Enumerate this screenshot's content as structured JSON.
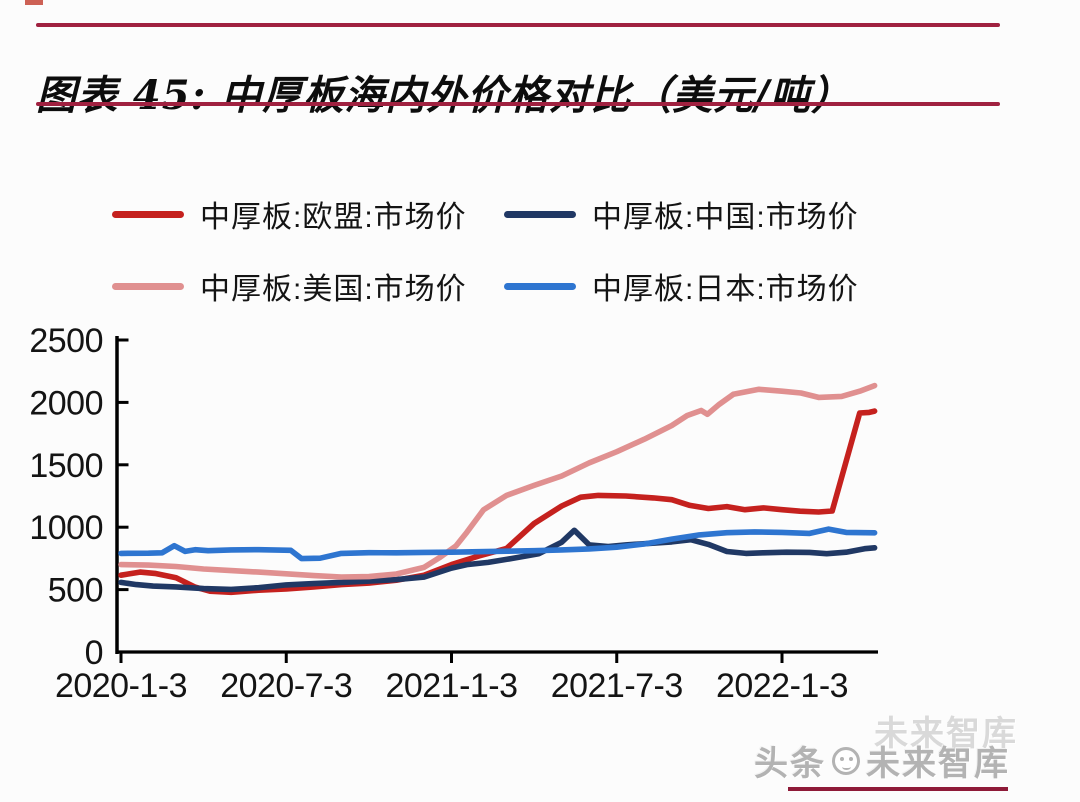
{
  "header": {
    "title": "图表 45:  中厚板海内外价格对比（美元/吨）"
  },
  "legend": {
    "items": [
      {
        "key": "eu",
        "label": "中厚板:欧盟:市场价",
        "color": "#c5211e"
      },
      {
        "key": "china",
        "label": "中厚板:中国:市场价",
        "color": "#203864"
      },
      {
        "key": "us",
        "label": "中厚板:美国:市场价",
        "color": "#e09090"
      },
      {
        "key": "japan",
        "label": "中厚板:日本:市场价",
        "color": "#2e75d0"
      }
    ]
  },
  "watermark": {
    "prefix": "头条",
    "name": "未来智库",
    "ghost": "未来智库"
  },
  "chart_data": {
    "type": "line",
    "title": "中厚板海内外价格对比（美元/吨）",
    "unit": "美元/吨",
    "ylim": [
      0,
      2500
    ],
    "y_ticks": [
      0,
      500,
      1000,
      1500,
      2000,
      2500
    ],
    "x_ticks": [
      {
        "label": "2020-1-3",
        "date": "2020-01-03"
      },
      {
        "label": "2020-7-3",
        "date": "2020-07-03"
      },
      {
        "label": "2021-1-3",
        "date": "2021-01-03"
      },
      {
        "label": "2021-7-3",
        "date": "2021-07-03"
      },
      {
        "label": "2022-1-3",
        "date": "2022-01-03"
      }
    ],
    "grid": false,
    "legend_position": "top",
    "series": [
      {
        "key": "eu",
        "name": "中厚板:欧盟:市场价",
        "color": "#c5211e",
        "points": [
          [
            "2020-01-03",
            615
          ],
          [
            "2020-01-24",
            640
          ],
          [
            "2020-02-10",
            630
          ],
          [
            "2020-03-03",
            595
          ],
          [
            "2020-03-24",
            520
          ],
          [
            "2020-04-10",
            487
          ],
          [
            "2020-05-03",
            478
          ],
          [
            "2020-06-03",
            495
          ],
          [
            "2020-07-03",
            505
          ],
          [
            "2020-08-03",
            522
          ],
          [
            "2020-09-03",
            540
          ],
          [
            "2020-10-03",
            552
          ],
          [
            "2020-11-03",
            575
          ],
          [
            "2020-12-03",
            615
          ],
          [
            "2021-01-03",
            700
          ],
          [
            "2021-02-03",
            770
          ],
          [
            "2021-03-03",
            830
          ],
          [
            "2021-04-03",
            1030
          ],
          [
            "2021-05-03",
            1170
          ],
          [
            "2021-05-24",
            1240
          ],
          [
            "2021-06-13",
            1255
          ],
          [
            "2021-07-13",
            1250
          ],
          [
            "2021-08-13",
            1235
          ],
          [
            "2021-09-03",
            1220
          ],
          [
            "2021-09-23",
            1175
          ],
          [
            "2021-10-13",
            1150
          ],
          [
            "2021-11-03",
            1165
          ],
          [
            "2021-11-23",
            1140
          ],
          [
            "2021-12-13",
            1155
          ],
          [
            "2022-01-03",
            1140
          ],
          [
            "2022-01-23",
            1128
          ],
          [
            "2022-02-13",
            1122
          ],
          [
            "2022-02-28",
            1130
          ],
          [
            "2022-03-28",
            1915
          ],
          [
            "2022-04-08",
            1920
          ],
          [
            "2022-04-14",
            1930
          ]
        ]
      },
      {
        "key": "china",
        "name": "中厚板:中国:市场价",
        "color": "#203864",
        "points": [
          [
            "2020-01-03",
            558
          ],
          [
            "2020-01-20",
            540
          ],
          [
            "2020-02-08",
            528
          ],
          [
            "2020-03-03",
            522
          ],
          [
            "2020-04-03",
            508
          ],
          [
            "2020-05-03",
            502
          ],
          [
            "2020-06-03",
            515
          ],
          [
            "2020-07-03",
            538
          ],
          [
            "2020-08-03",
            548
          ],
          [
            "2020-09-03",
            558
          ],
          [
            "2020-10-03",
            568
          ],
          [
            "2020-11-03",
            580
          ],
          [
            "2020-12-03",
            600
          ],
          [
            "2021-01-03",
            672
          ],
          [
            "2021-01-20",
            700
          ],
          [
            "2021-02-13",
            718
          ],
          [
            "2021-03-08",
            748
          ],
          [
            "2021-04-08",
            788
          ],
          [
            "2021-05-03",
            880
          ],
          [
            "2021-05-17",
            975
          ],
          [
            "2021-06-03",
            858
          ],
          [
            "2021-06-24",
            845
          ],
          [
            "2021-07-13",
            858
          ],
          [
            "2021-08-08",
            870
          ],
          [
            "2021-09-03",
            882
          ],
          [
            "2021-09-24",
            900
          ],
          [
            "2021-10-13",
            862
          ],
          [
            "2021-11-03",
            805
          ],
          [
            "2021-11-24",
            790
          ],
          [
            "2021-12-13",
            795
          ],
          [
            "2022-01-08",
            800
          ],
          [
            "2022-02-03",
            798
          ],
          [
            "2022-02-22",
            788
          ],
          [
            "2022-03-13",
            800
          ],
          [
            "2022-04-03",
            828
          ],
          [
            "2022-04-14",
            835
          ]
        ]
      },
      {
        "key": "us",
        "name": "中厚板:美国:市场价",
        "color": "#e09090",
        "points": [
          [
            "2020-01-03",
            700
          ],
          [
            "2020-02-03",
            696
          ],
          [
            "2020-03-03",
            685
          ],
          [
            "2020-04-03",
            665
          ],
          [
            "2020-05-03",
            652
          ],
          [
            "2020-06-03",
            640
          ],
          [
            "2020-07-03",
            627
          ],
          [
            "2020-08-03",
            612
          ],
          [
            "2020-09-03",
            601
          ],
          [
            "2020-10-03",
            604
          ],
          [
            "2020-11-03",
            625
          ],
          [
            "2020-12-03",
            678
          ],
          [
            "2020-12-20",
            755
          ],
          [
            "2021-01-08",
            850
          ],
          [
            "2021-01-20",
            960
          ],
          [
            "2021-02-08",
            1140
          ],
          [
            "2021-03-03",
            1255
          ],
          [
            "2021-04-03",
            1335
          ],
          [
            "2021-05-03",
            1410
          ],
          [
            "2021-06-03",
            1515
          ],
          [
            "2021-07-03",
            1605
          ],
          [
            "2021-08-03",
            1705
          ],
          [
            "2021-09-03",
            1815
          ],
          [
            "2021-09-20",
            1895
          ],
          [
            "2021-10-05",
            1935
          ],
          [
            "2021-10-12",
            1905
          ],
          [
            "2021-10-25",
            1985
          ],
          [
            "2021-11-10",
            2065
          ],
          [
            "2021-12-08",
            2105
          ],
          [
            "2022-01-03",
            2090
          ],
          [
            "2022-01-24",
            2075
          ],
          [
            "2022-02-13",
            2040
          ],
          [
            "2022-03-08",
            2048
          ],
          [
            "2022-03-28",
            2090
          ],
          [
            "2022-04-14",
            2135
          ]
        ]
      },
      {
        "key": "japan",
        "name": "中厚板:日本:市场价",
        "color": "#2e75d0",
        "points": [
          [
            "2020-01-03",
            790
          ],
          [
            "2020-02-03",
            792
          ],
          [
            "2020-02-18",
            795
          ],
          [
            "2020-03-01",
            852
          ],
          [
            "2020-03-13",
            806
          ],
          [
            "2020-03-24",
            820
          ],
          [
            "2020-04-08",
            812
          ],
          [
            "2020-05-03",
            818
          ],
          [
            "2020-06-03",
            820
          ],
          [
            "2020-07-08",
            815
          ],
          [
            "2020-07-20",
            748
          ],
          [
            "2020-08-10",
            752
          ],
          [
            "2020-09-03",
            790
          ],
          [
            "2020-10-03",
            796
          ],
          [
            "2020-11-03",
            795
          ],
          [
            "2020-12-03",
            798
          ],
          [
            "2021-01-03",
            800
          ],
          [
            "2021-02-03",
            804
          ],
          [
            "2021-03-03",
            808
          ],
          [
            "2021-04-03",
            812
          ],
          [
            "2021-05-03",
            818
          ],
          [
            "2021-06-03",
            826
          ],
          [
            "2021-07-03",
            840
          ],
          [
            "2021-08-03",
            865
          ],
          [
            "2021-09-03",
            905
          ],
          [
            "2021-10-03",
            938
          ],
          [
            "2021-11-03",
            956
          ],
          [
            "2021-12-03",
            962
          ],
          [
            "2022-01-03",
            958
          ],
          [
            "2022-02-03",
            950
          ],
          [
            "2022-02-24",
            985
          ],
          [
            "2022-03-13",
            958
          ],
          [
            "2022-04-14",
            955
          ]
        ]
      }
    ]
  }
}
